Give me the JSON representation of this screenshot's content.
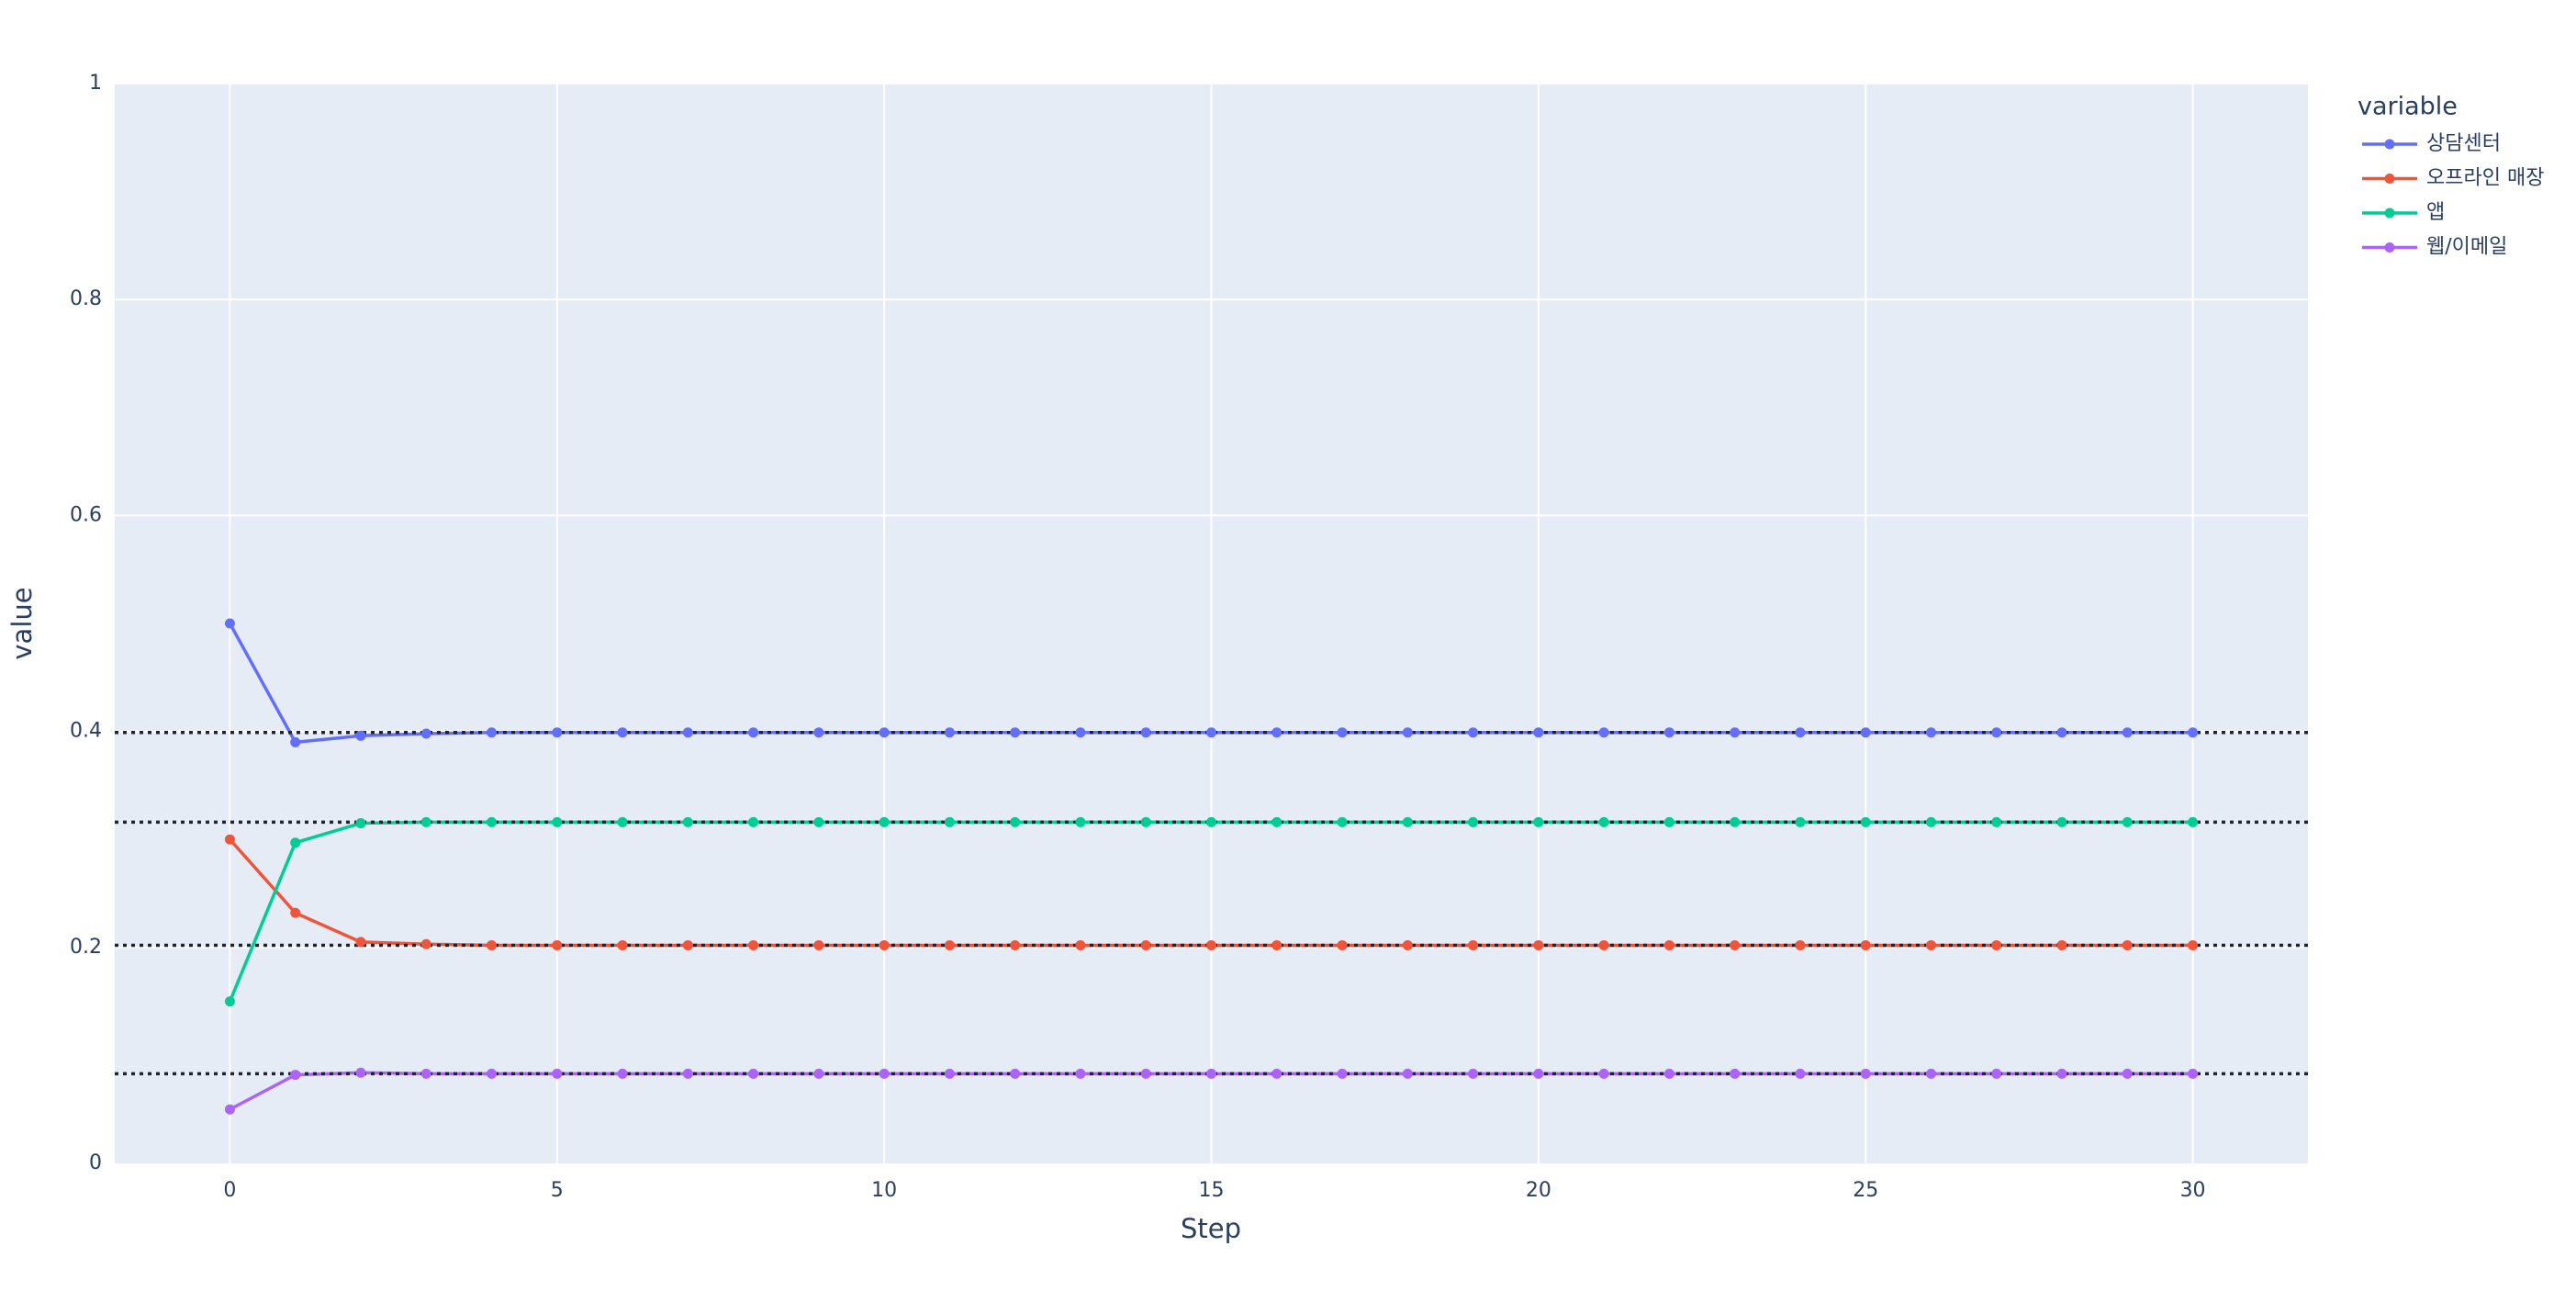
{
  "chart_data": {
    "type": "line",
    "x_label": "Step",
    "y_label": "value",
    "legend_title": "variable",
    "x": [
      0,
      1,
      2,
      3,
      4,
      5,
      6,
      7,
      8,
      9,
      10,
      11,
      12,
      13,
      14,
      15,
      16,
      17,
      18,
      19,
      20,
      21,
      22,
      23,
      24,
      25,
      26,
      27,
      28,
      29,
      30
    ],
    "series": [
      {
        "name": "상담센터",
        "color": "#636efa",
        "values": [
          0.5,
          0.39,
          0.396,
          0.398,
          0.399,
          0.399,
          0.399,
          0.399,
          0.399,
          0.399,
          0.399,
          0.399,
          0.399,
          0.399,
          0.399,
          0.399,
          0.399,
          0.399,
          0.399,
          0.399,
          0.399,
          0.399,
          0.399,
          0.399,
          0.399,
          0.399,
          0.399,
          0.399,
          0.399,
          0.399,
          0.399
        ]
      },
      {
        "name": "오프라인 매장",
        "color": "#ef553b",
        "values": [
          0.3,
          0.232,
          0.205,
          0.203,
          0.202,
          0.202,
          0.202,
          0.202,
          0.202,
          0.202,
          0.202,
          0.202,
          0.202,
          0.202,
          0.202,
          0.202,
          0.202,
          0.202,
          0.202,
          0.202,
          0.202,
          0.202,
          0.202,
          0.202,
          0.202,
          0.202,
          0.202,
          0.202,
          0.202,
          0.202,
          0.202
        ]
      },
      {
        "name": "앱",
        "color": "#00cc96",
        "values": [
          0.15,
          0.297,
          0.315,
          0.316,
          0.316,
          0.316,
          0.316,
          0.316,
          0.316,
          0.316,
          0.316,
          0.316,
          0.316,
          0.316,
          0.316,
          0.316,
          0.316,
          0.316,
          0.316,
          0.316,
          0.316,
          0.316,
          0.316,
          0.316,
          0.316,
          0.316,
          0.316,
          0.316,
          0.316,
          0.316,
          0.316
        ]
      },
      {
        "name": "웹/이메일",
        "color": "#ab63fa",
        "values": [
          0.05,
          0.082,
          0.084,
          0.083,
          0.083,
          0.083,
          0.083,
          0.083,
          0.083,
          0.083,
          0.083,
          0.083,
          0.083,
          0.083,
          0.083,
          0.083,
          0.083,
          0.083,
          0.083,
          0.083,
          0.083,
          0.083,
          0.083,
          0.083,
          0.083,
          0.083,
          0.083,
          0.083,
          0.083,
          0.083,
          0.083
        ]
      }
    ],
    "hlines": [
      0.399,
      0.316,
      0.202,
      0.083
    ],
    "xlim": [
      -1.76,
      31.76
    ],
    "xticks": [
      0,
      5,
      10,
      15,
      20,
      25,
      30
    ],
    "ylim": [
      0,
      1
    ],
    "yticks": [
      0,
      0.2,
      0.4,
      0.6,
      0.8,
      1
    ],
    "grid": true
  }
}
